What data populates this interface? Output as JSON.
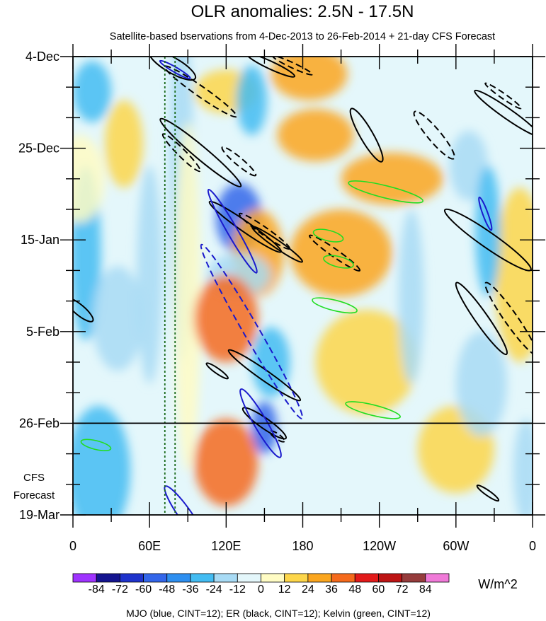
{
  "chart_data": {
    "type": "heatmap",
    "title": "OLR anomalies: 2.5N - 17.5N",
    "subtitle": "Satellite-based bservations from 4-Dec-2013 to 26-Feb-2014 + 21-day CFS Forecast",
    "y_labels": [
      "4-Dec",
      "25-Dec",
      "15-Jan",
      "5-Feb",
      "26-Feb",
      "19-Mar"
    ],
    "x_labels": [
      "0",
      "60E",
      "120E",
      "180",
      "120W",
      "60W",
      "0"
    ],
    "x_range_deg_east": [
      0,
      360
    ],
    "day_range": [
      0,
      105
    ],
    "observation_end_day": 84,
    "forecast_label_line1": "CFS",
    "forecast_label_line2": "Forecast",
    "colorbar": {
      "levels": [
        -84,
        -72,
        -60,
        -48,
        -36,
        -24,
        -12,
        0,
        12,
        24,
        36,
        48,
        60,
        72,
        84
      ],
      "tick_labels": [
        "-84",
        "-72",
        "-60",
        "-48",
        "-36",
        "-24",
        "-12",
        "0",
        "12",
        "24",
        "36",
        "48",
        "60",
        "72",
        "84"
      ],
      "colors": [
        "#9f33ff",
        "#14148f",
        "#1f33cc",
        "#3366ea",
        "#2e8ff0",
        "#43bcf2",
        "#a8dbf5",
        "#e4f7fb",
        "#fffcc4",
        "#fdd64a",
        "#fba61f",
        "#f56a1c",
        "#e21a1a",
        "#bd1414",
        "#963c3c",
        "#f07ad8"
      ],
      "unit": "W/m^2"
    },
    "footnote": "MJO (blue, CINT=12); ER (black, CINT=12); Kelvin (green, CINT=12)",
    "contour_series": [
      {
        "name": "MJO",
        "color": "#1a1acc",
        "cint": 12
      },
      {
        "name": "ER",
        "color": "#000000",
        "cint": 12
      },
      {
        "name": "Kelvin",
        "color": "#22dd22",
        "cint": 12
      }
    ],
    "reference_lines_lon": [
      72,
      80
    ],
    "field_features": [
      {
        "lon": 10,
        "day": 45,
        "value": -30,
        "rlon": 12,
        "rday": 20
      },
      {
        "lon": 15,
        "day": 8,
        "value": -25,
        "rlon": 15,
        "rday": 7
      },
      {
        "lon": 40,
        "day": 20,
        "value": 20,
        "rlon": 15,
        "rday": 10
      },
      {
        "lon": 5,
        "day": 28,
        "value": 10,
        "rlon": 20,
        "rday": 10
      },
      {
        "lon": 35,
        "day": 60,
        "value": -20,
        "rlon": 20,
        "rday": 12
      },
      {
        "lon": 20,
        "day": 95,
        "value": -30,
        "rlon": 25,
        "rday": 15
      },
      {
        "lon": 60,
        "day": 50,
        "value": -15,
        "rlon": 10,
        "rday": 25
      },
      {
        "lon": 85,
        "day": 30,
        "value": -15,
        "rlon": 10,
        "rday": 40
      },
      {
        "lon": 90,
        "day": 55,
        "value": 8,
        "rlon": 10,
        "rday": 40
      },
      {
        "lon": 120,
        "day": 8,
        "value": 20,
        "rlon": 25,
        "rday": 5
      },
      {
        "lon": 140,
        "day": 10,
        "value": -25,
        "rlon": 12,
        "rday": 8
      },
      {
        "lon": 185,
        "day": 4,
        "value": 25,
        "rlon": 30,
        "rday": 6
      },
      {
        "lon": 190,
        "day": 18,
        "value": 30,
        "rlon": 30,
        "rday": 6
      },
      {
        "lon": 250,
        "day": 28,
        "value": 25,
        "rlon": 40,
        "rday": 6
      },
      {
        "lon": 310,
        "day": 25,
        "value": -20,
        "rlon": 15,
        "rday": 8
      },
      {
        "lon": 130,
        "day": 37,
        "value": -50,
        "rlon": 18,
        "rday": 8
      },
      {
        "lon": 145,
        "day": 45,
        "value": 30,
        "rlon": 20,
        "rday": 10
      },
      {
        "lon": 130,
        "day": 50,
        "value": -20,
        "rlon": 25,
        "rday": 5
      },
      {
        "lon": 120,
        "day": 60,
        "value": 40,
        "rlon": 25,
        "rday": 10
      },
      {
        "lon": 155,
        "day": 70,
        "value": -25,
        "rlon": 15,
        "rday": 8
      },
      {
        "lon": 150,
        "day": 85,
        "value": -60,
        "rlon": 10,
        "rday": 6
      },
      {
        "lon": 120,
        "day": 93,
        "value": 40,
        "rlon": 25,
        "rday": 10
      },
      {
        "lon": 210,
        "day": 45,
        "value": 25,
        "rlon": 40,
        "rday": 10
      },
      {
        "lon": 230,
        "day": 70,
        "value": 20,
        "rlon": 40,
        "rday": 12
      },
      {
        "lon": 265,
        "day": 55,
        "value": -20,
        "rlon": 10,
        "rday": 20
      },
      {
        "lon": 300,
        "day": 90,
        "value": 20,
        "rlon": 30,
        "rday": 10
      },
      {
        "lon": 320,
        "day": 75,
        "value": -20,
        "rlon": 20,
        "rday": 12
      },
      {
        "lon": 350,
        "day": 50,
        "value": 20,
        "rlon": 20,
        "rday": 20
      },
      {
        "lon": 355,
        "day": 95,
        "value": -15,
        "rlon": 10,
        "rday": 12
      },
      {
        "lon": 325,
        "day": 40,
        "value": -25,
        "rlon": 10,
        "rday": 15
      }
    ],
    "contours": [
      {
        "series": "ER",
        "dashed": false,
        "lon": 78,
        "day": 2,
        "rlon": 6,
        "rday": 6,
        "angle": -60
      },
      {
        "series": "ER",
        "dashed": true,
        "lon": 100,
        "day": 8,
        "rlon": 4,
        "rday": 10,
        "angle": -55
      },
      {
        "series": "ER",
        "dashed": false,
        "lon": 100,
        "day": 22,
        "rlon": 5,
        "rday": 12,
        "angle": -50
      },
      {
        "series": "ER",
        "dashed": true,
        "lon": 85,
        "day": 22,
        "rlon": 3,
        "rday": 6,
        "angle": -45
      },
      {
        "series": "ER",
        "dashed": true,
        "lon": 130,
        "day": 24,
        "rlon": 3,
        "rday": 5,
        "angle": -50
      },
      {
        "series": "ER",
        "dashed": false,
        "lon": 155,
        "day": 2,
        "rlon": 3,
        "rday": 6,
        "angle": -65
      },
      {
        "series": "ER",
        "dashed": true,
        "lon": 172,
        "day": 2,
        "rlon": 2,
        "rday": 5,
        "angle": -65
      },
      {
        "series": "ER",
        "dashed": false,
        "lon": 230,
        "day": 18,
        "rlon": 5,
        "rday": 7,
        "angle": -30
      },
      {
        "series": "ER",
        "dashed": true,
        "lon": 283,
        "day": 18,
        "rlon": 5,
        "rday": 7,
        "angle": -40
      },
      {
        "series": "ER",
        "dashed": false,
        "lon": 340,
        "day": 13,
        "rlon": 4,
        "rday": 9,
        "angle": -55
      },
      {
        "series": "ER",
        "dashed": true,
        "lon": 337,
        "day": 9,
        "rlon": 2,
        "rday": 5,
        "angle": -55
      },
      {
        "series": "ER",
        "dashed": false,
        "lon": 325,
        "day": 42,
        "rlon": 6,
        "rday": 12,
        "angle": -55
      },
      {
        "series": "ER",
        "dashed": false,
        "lon": 320,
        "day": 60,
        "rlon": 5,
        "rday": 10,
        "angle": -35
      },
      {
        "series": "ER",
        "dashed": true,
        "lon": 343,
        "day": 60,
        "rlon": 5,
        "rday": 10,
        "angle": -35
      },
      {
        "series": "ER",
        "dashed": false,
        "lon": 5,
        "day": 58,
        "rlon": 4,
        "rday": 4,
        "angle": -50
      },
      {
        "series": "ER",
        "dashed": false,
        "lon": 135,
        "day": 39,
        "rlon": 4,
        "rday": 10,
        "angle": -55
      },
      {
        "series": "ER",
        "dashed": true,
        "lon": 150,
        "day": 40,
        "rlon": 3,
        "rday": 7,
        "angle": -55
      },
      {
        "series": "ER",
        "dashed": false,
        "lon": 160,
        "day": 43,
        "rlon": 3,
        "rday": 7,
        "angle": -55
      },
      {
        "series": "ER",
        "dashed": true,
        "lon": 205,
        "day": 45,
        "rlon": 3,
        "rday": 7,
        "angle": -55
      },
      {
        "series": "ER",
        "dashed": false,
        "lon": 150,
        "day": 73,
        "rlon": 4,
        "rday": 10,
        "angle": -55
      },
      {
        "series": "ER",
        "dashed": false,
        "lon": 113,
        "day": 72,
        "rlon": 2,
        "rday": 3,
        "angle": -55
      },
      {
        "series": "ER",
        "dashed": false,
        "lon": 150,
        "day": 84,
        "rlon": 4,
        "rday": 6,
        "angle": -55
      },
      {
        "series": "ER",
        "dashed": true,
        "lon": 160,
        "day": 87,
        "rlon": 2,
        "rday": 2,
        "angle": -55
      },
      {
        "series": "ER",
        "dashed": false,
        "lon": 325,
        "day": 100,
        "rlon": 2,
        "rday": 3,
        "angle": -55
      },
      {
        "series": "MJO",
        "dashed": false,
        "lon": 80,
        "day": 3,
        "rlon": 2,
        "rday": 4,
        "angle": -60
      },
      {
        "series": "MJO",
        "dashed": false,
        "lon": 125,
        "day": 40,
        "rlon": 4,
        "rday": 11,
        "angle": -30
      },
      {
        "series": "MJO",
        "dashed": true,
        "lon": 140,
        "day": 63,
        "rlon": 6,
        "rday": 23,
        "angle": -30
      },
      {
        "series": "MJO",
        "dashed": false,
        "lon": 147,
        "day": 84,
        "rlon": 5,
        "rday": 9,
        "angle": -30
      },
      {
        "series": "MJO",
        "dashed": false,
        "lon": 88,
        "day": 105,
        "rlon": 5,
        "rday": 8,
        "angle": -35
      },
      {
        "series": "MJO",
        "dashed": false,
        "lon": 323,
        "day": 36,
        "rlon": 2,
        "rday": 4,
        "angle": -20
      },
      {
        "series": "Kelvin",
        "dashed": false,
        "lon": 245,
        "day": 31,
        "rlon": 30,
        "rday": 1.4,
        "angle": 14
      },
      {
        "series": "Kelvin",
        "dashed": false,
        "lon": 200,
        "day": 41,
        "rlon": 12,
        "rday": 1.2,
        "angle": 14
      },
      {
        "series": "Kelvin",
        "dashed": false,
        "lon": 208,
        "day": 47,
        "rlon": 12,
        "rday": 1.2,
        "angle": 14
      },
      {
        "series": "Kelvin",
        "dashed": false,
        "lon": 205,
        "day": 57,
        "rlon": 18,
        "rday": 1.2,
        "angle": 14
      },
      {
        "series": "Kelvin",
        "dashed": false,
        "lon": 235,
        "day": 81,
        "rlon": 22,
        "rday": 1.2,
        "angle": 14
      },
      {
        "series": "Kelvin",
        "dashed": false,
        "lon": 18,
        "day": 89,
        "rlon": 12,
        "rday": 1.0,
        "angle": 14
      }
    ]
  }
}
